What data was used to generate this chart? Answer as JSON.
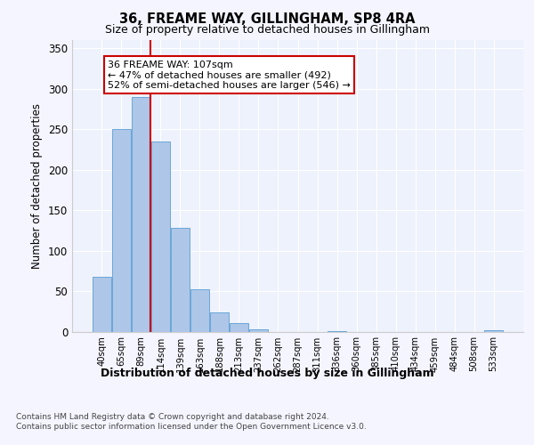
{
  "title1": "36, FREAME WAY, GILLINGHAM, SP8 4RA",
  "title2": "Size of property relative to detached houses in Gillingham",
  "xlabel": "Distribution of detached houses by size in Gillingham",
  "ylabel": "Number of detached properties",
  "bar_labels": [
    "40sqm",
    "65sqm",
    "89sqm",
    "114sqm",
    "139sqm",
    "163sqm",
    "188sqm",
    "213sqm",
    "237sqm",
    "262sqm",
    "287sqm",
    "311sqm",
    "336sqm",
    "360sqm",
    "385sqm",
    "410sqm",
    "434sqm",
    "459sqm",
    "484sqm",
    "508sqm",
    "533sqm"
  ],
  "bar_values": [
    68,
    250,
    290,
    235,
    128,
    52,
    24,
    10,
    3,
    0,
    0,
    0,
    1,
    0,
    0,
    0,
    0,
    0,
    0,
    0,
    2
  ],
  "bar_color": "#aec6e8",
  "bar_edgecolor": "#5a9fd4",
  "vline_x": 2.5,
  "vline_color": "#cc0000",
  "annotation_text": "36 FREAME WAY: 107sqm\n← 47% of detached houses are smaller (492)\n52% of semi-detached houses are larger (546) →",
  "annotation_box_color": "#ffffff",
  "annotation_box_edgecolor": "#cc0000",
  "ylim": [
    0,
    360
  ],
  "yticks": [
    0,
    50,
    100,
    150,
    200,
    250,
    300,
    350
  ],
  "background_color": "#eef2fc",
  "grid_color": "#ffffff",
  "footer_line1": "Contains HM Land Registry data © Crown copyright and database right 2024.",
  "footer_line2": "Contains public sector information licensed under the Open Government Licence v3.0."
}
